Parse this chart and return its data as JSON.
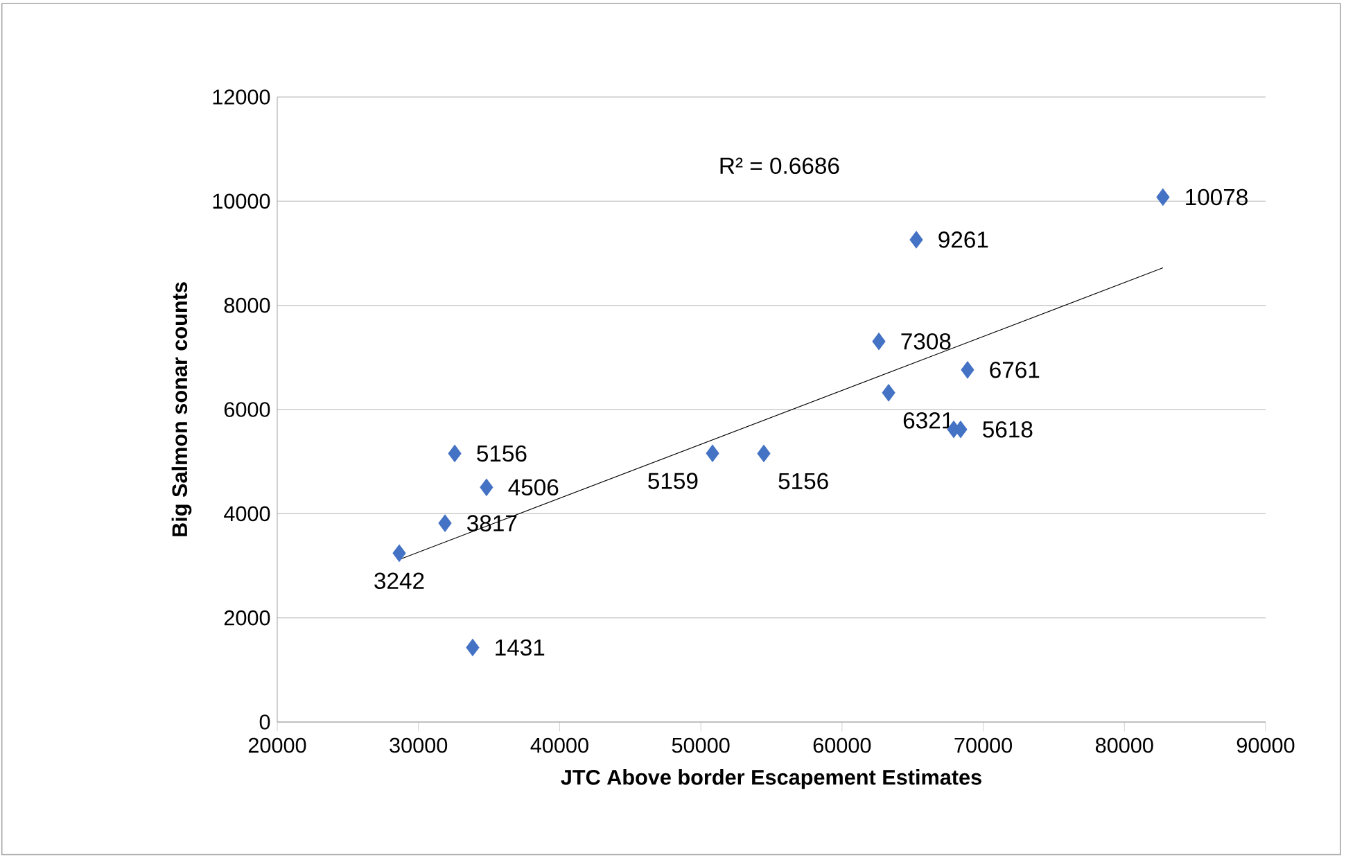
{
  "chart_data": {
    "type": "scatter",
    "xlabel": "JTC Above border Escapement Estimates",
    "ylabel": "Big Salmon sonar counts",
    "annotations": [
      "R² = 0.6686"
    ],
    "series": [
      {
        "color": "#4472c4",
        "marker": "diamond",
        "x": [
          28640,
          33840,
          31880,
          32570,
          34820,
          50830,
          54460,
          62610,
          63300,
          65260,
          67910,
          68400,
          68890,
          82730
        ],
        "values": [
          3242,
          1431,
          3817,
          5156,
          4506,
          5159,
          5156,
          7308,
          6321,
          9261,
          5620,
          5618,
          6761,
          10078
        ],
        "value_labels": [
          "3242",
          "1431",
          "3817",
          "5156",
          "4506",
          "5159",
          "5156",
          "7308",
          "6321",
          "9261",
          null,
          "5618",
          "6761",
          "10078"
        ]
      },
      {
        "type": "line",
        "color": "#000000",
        "marker": "none",
        "x": [
          28640,
          82730
        ],
        "values": [
          3120,
          8720
        ]
      }
    ],
    "xlim": [
      20000,
      90000
    ],
    "ylim": [
      0,
      12000
    ],
    "xticks": [
      20000,
      30000,
      40000,
      50000,
      60000,
      70000,
      80000,
      90000
    ],
    "yticks": [
      0,
      2000,
      4000,
      6000,
      8000,
      10000,
      12000
    ],
    "grid": "y"
  }
}
